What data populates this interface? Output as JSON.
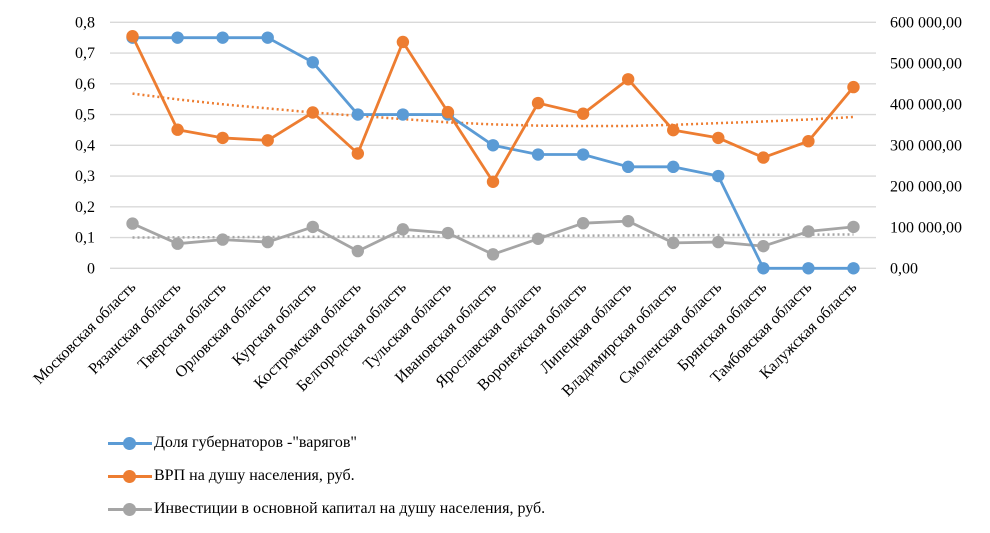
{
  "chart_data": {
    "type": "line",
    "title": "",
    "xlabel": "",
    "ylabel": "",
    "ylabel_right": "",
    "grid": true,
    "legend_position": "bottom-left",
    "categories": [
      "Московская область",
      "Рязанская область",
      "Тверская область",
      "Орловская область",
      "Курская область",
      "Костромская область",
      "Белгородская область",
      "Тульская область",
      "Ивановская область",
      "Ярославская область",
      "Воронежская область",
      "Липецкая область",
      "Владимирская область",
      "Смоленская область",
      "Брянская область",
      "Тамбовская область",
      "Калужская область"
    ],
    "y_left": {
      "range": [
        0,
        0.8
      ],
      "ticks": [
        0,
        0.1,
        0.2,
        0.3,
        0.4,
        0.5,
        0.6,
        0.7,
        0.8
      ],
      "tick_labels": [
        "0",
        "0,1",
        "0,2",
        "0,3",
        "0,4",
        "0,5",
        "0,6",
        "0,7",
        "0,8"
      ]
    },
    "y_right": {
      "range": [
        0,
        600000
      ],
      "ticks": [
        0,
        100000,
        200000,
        300000,
        400000,
        500000,
        600000
      ],
      "tick_labels": [
        "0,00",
        "100 000,00",
        "200 000,00",
        "300 000,00",
        "400 000,00",
        "500 000,00",
        "600 000,00"
      ]
    },
    "series": [
      {
        "name": "Доля губернаторов -\"варягов\"",
        "axis": "left",
        "color": "#5B9BD5",
        "values": [
          0.75,
          0.75,
          0.75,
          0.75,
          0.67,
          0.5,
          0.5,
          0.5,
          0.4,
          0.37,
          0.37,
          0.33,
          0.33,
          0.3,
          0,
          0,
          0
        ]
      },
      {
        "name": "ВРП на душу населения, руб.",
        "axis": "right",
        "color": "#ED7D31",
        "values": [
          566000,
          338000,
          318000,
          312000,
          380000,
          280000,
          552000,
          381000,
          211000,
          403000,
          377000,
          461000,
          337000,
          318000,
          270000,
          310000,
          442000
        ],
        "trendline": {
          "style": "dotted",
          "type": "polynomial",
          "values": [
            426000,
            412000,
            400000,
            390000,
            380000,
            372000,
            364000,
            356000,
            351000,
            348000,
            347000,
            347000,
            350000,
            354000,
            358000,
            363000,
            369000
          ]
        }
      },
      {
        "name": "Инвестиции в основной капитал на душу населения, руб.",
        "axis": "right",
        "color": "#A5A5A5",
        "values": [
          109000,
          60000,
          70000,
          64000,
          101000,
          42000,
          95000,
          86000,
          34000,
          72000,
          110000,
          115000,
          62000,
          64000,
          54000,
          90000,
          101000
        ],
        "trendline": {
          "style": "dotted",
          "type": "linear",
          "values": [
            75000,
            82500
          ]
        }
      }
    ]
  }
}
